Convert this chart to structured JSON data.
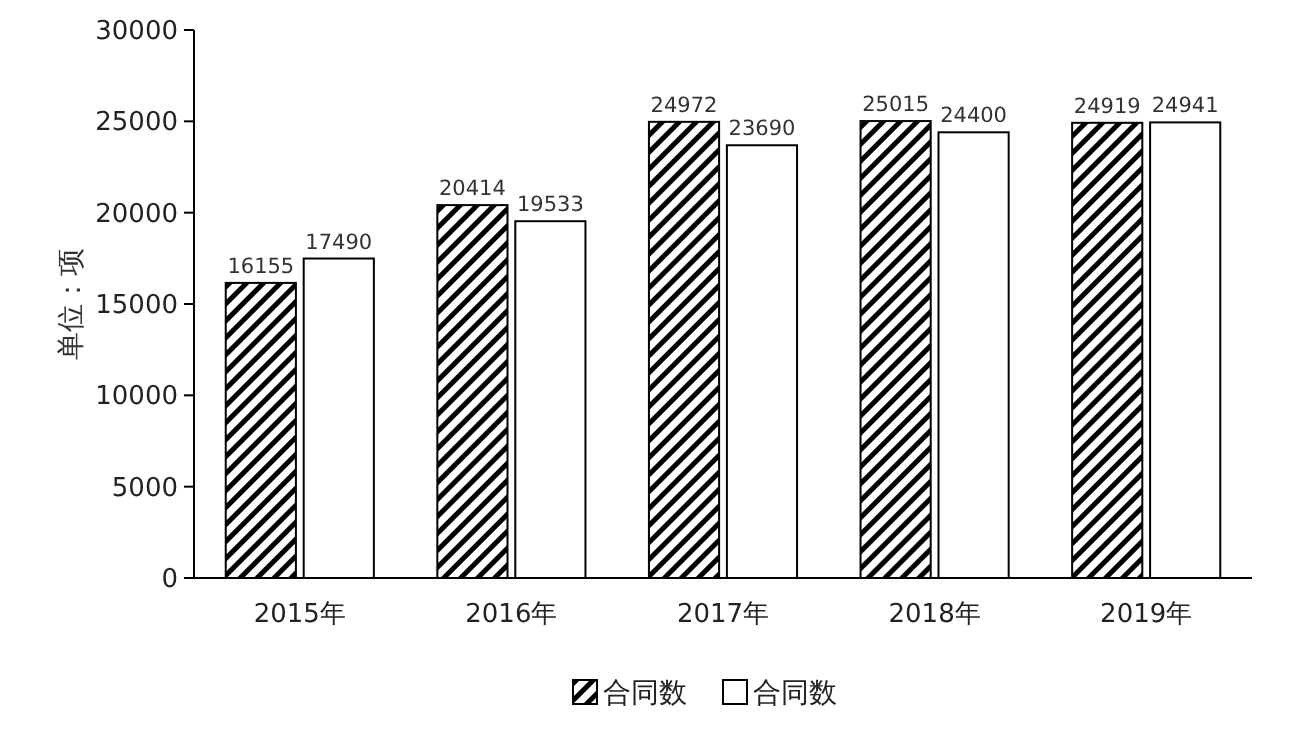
{
  "chart_data": {
    "type": "bar",
    "ylabel": "单位：项",
    "categories": [
      "2015年",
      "2016年",
      "2017年",
      "2018年",
      "2019年"
    ],
    "series": [
      {
        "name": "合同数",
        "color": "#000000",
        "values": [
          16155,
          20414,
          24972,
          25015,
          24919
        ]
      },
      {
        "name": "合同数",
        "color": "#ffffff",
        "values": [
          17490,
          19533,
          23690,
          24400,
          24941
        ]
      }
    ],
    "ylim": [
      0,
      30000
    ],
    "yticks": [
      0,
      5000,
      10000,
      15000,
      20000,
      25000,
      30000
    ],
    "data_labels": true,
    "grid": false,
    "legend": "bottom"
  }
}
